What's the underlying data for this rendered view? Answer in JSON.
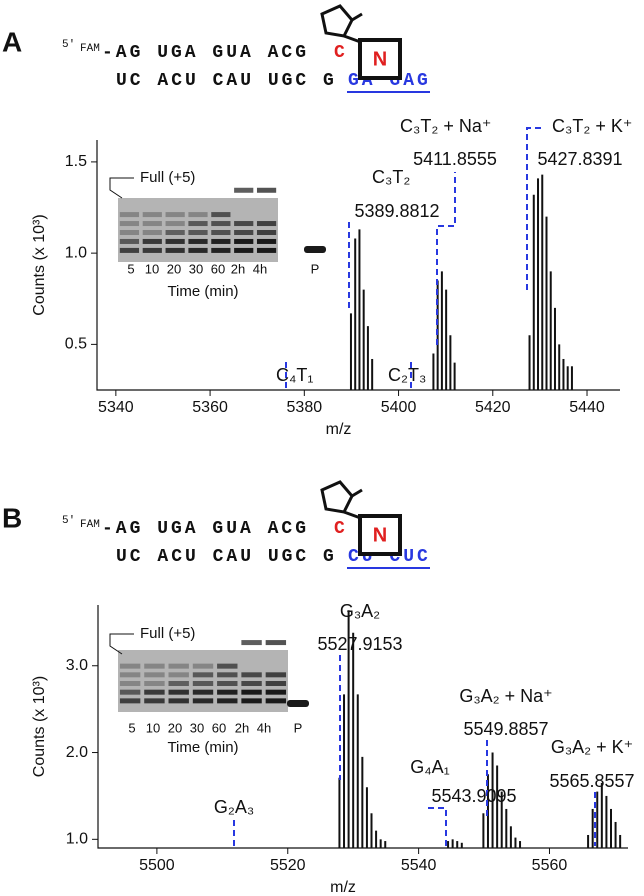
{
  "panels": [
    {
      "label": "A",
      "sequence": {
        "prime": "5′",
        "tag": "FAM",
        "top": "-AG UGA GUA ACG",
        "top_mod": "C",
        "bottom": "UC ACU CAU UGC G",
        "bottom_target": "GA GAG",
        "modifier": "N"
      },
      "inset": {
        "title": "Full (+5)",
        "lanes": [
          "5",
          "10",
          "20",
          "30",
          "60",
          "2h",
          "4h",
          "P"
        ],
        "xlabel": "Time (min)"
      }
    },
    {
      "label": "B",
      "sequence": {
        "prime": "5′",
        "tag": "FAM",
        "top": "-AG UGA GUA ACG",
        "top_mod": "C",
        "bottom": "UC ACU CAU UGC G",
        "bottom_target": "CU CUC",
        "modifier": "N"
      },
      "inset": {
        "title": "Full (+5)",
        "lanes": [
          "5",
          "10",
          "20",
          "30",
          "60",
          "2h",
          "4h",
          "P"
        ],
        "xlabel": "Time (min)"
      }
    }
  ],
  "chart_data": [
    {
      "type": "bar",
      "xlabel": "m/z",
      "ylabel": "Counts (x 10³)",
      "color": "#111111",
      "x": [
        5389.9,
        5390.8,
        5391.7,
        5392.6,
        5393.5,
        5394.4,
        5407.4,
        5408.3,
        5409.2,
        5410.1,
        5411.0,
        5411.9,
        5427.8,
        5428.7,
        5429.6,
        5430.5,
        5431.4,
        5432.3,
        5433.2,
        5434.1,
        5435.0,
        5435.9,
        5436.8
      ],
      "values": [
        0.67,
        1.08,
        1.13,
        0.8,
        0.6,
        0.42,
        0.45,
        0.85,
        0.9,
        0.8,
        0.55,
        0.4,
        0.55,
        1.32,
        1.41,
        1.43,
        1.2,
        0.9,
        0.7,
        0.5,
        0.42,
        0.38,
        0.38
      ],
      "xlim": [
        5336,
        5447
      ],
      "xticks": [
        5340,
        5360,
        5380,
        5400,
        5420,
        5440
      ],
      "ylim": [
        0.25,
        1.62
      ],
      "yticks": [
        0.5,
        {
          "value": 1,
          "label": "1.0"
        },
        1.5
      ],
      "annotations": [
        "C₄T₁",
        "C₃T₂",
        "5389.8812",
        "C₂T₃",
        "C₃T₂ + Na⁺",
        "5411.8555",
        "C₃T₂ + K⁺",
        "5427.8391"
      ]
    },
    {
      "type": "bar",
      "xlabel": "m/z",
      "ylabel": "Counts (x 10³)",
      "color": "#111111",
      "x": [
        5527.9,
        5528.6,
        5529.3,
        5530.0,
        5530.7,
        5531.4,
        5532.1,
        5532.8,
        5533.5,
        5534.2,
        5534.9,
        5544.5,
        5545.2,
        5545.9,
        5546.6,
        5549.9,
        5550.6,
        5551.3,
        5552.0,
        5552.7,
        5553.4,
        5554.1,
        5554.8,
        5555.5,
        5565.9,
        5566.6,
        5567.3,
        5568.0,
        5568.7,
        5569.4,
        5570.1,
        5570.8
      ],
      "values": [
        1.71,
        2.67,
        3.64,
        3.38,
        2.67,
        1.95,
        1.6,
        1.3,
        1.1,
        1.0,
        0.98,
        0.98,
        1.0,
        0.98,
        0.96,
        1.3,
        1.75,
        2.0,
        1.85,
        1.55,
        1.35,
        1.15,
        1.02,
        0.98,
        1.05,
        1.35,
        1.55,
        1.65,
        1.5,
        1.35,
        1.2,
        1.05
      ],
      "xlim": [
        5491,
        5572
      ],
      "xticks": [
        5500,
        5520,
        5540,
        5560
      ],
      "ylim": [
        0.9,
        3.7
      ],
      "yticks": [
        {
          "value": 1,
          "label": "1.0"
        },
        {
          "value": 2,
          "label": "2.0"
        },
        {
          "value": 3,
          "label": "3.0"
        }
      ],
      "annotations": [
        "G₃A₂",
        "5527.9153",
        "G₄A₁",
        "5543.9095",
        "G₃A₂ + Na⁺",
        "5549.8857",
        "G₃A₂ + K⁺",
        "5565.8557",
        "G₂A₃"
      ]
    }
  ]
}
